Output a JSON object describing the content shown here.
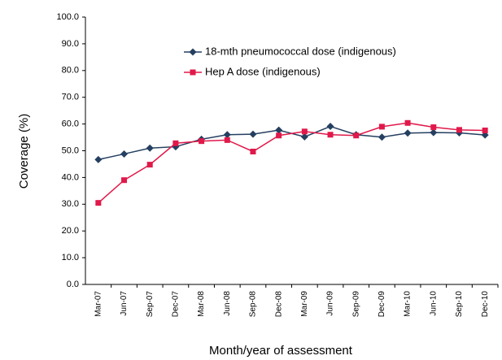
{
  "chart_data": {
    "type": "line",
    "x_label": "Month/year of assessment",
    "y_label": "Coverage (%)",
    "categories": [
      "Mar-07",
      "Jun-07",
      "Sep-07",
      "Dec-07",
      "Mar-08",
      "Jun-08",
      "Sep-08",
      "Dec-08",
      "Mar-09",
      "Jun-09",
      "Sep-09",
      "Dec-09",
      "Mar-10",
      "Jun-10",
      "Sep-10",
      "Dec-10"
    ],
    "series": [
      {
        "name": "18-mth pneumococcal dose (indigenous)",
        "color": "#243f60",
        "marker": "diamond",
        "values": [
          46.7,
          48.8,
          51.0,
          51.5,
          54.3,
          56.0,
          56.2,
          57.7,
          55.2,
          59.1,
          56.0,
          55.1,
          56.6,
          56.8,
          56.7,
          55.9
        ]
      },
      {
        "name": "Hep A dose (indigenous)",
        "color": "#e0194a",
        "marker": "square",
        "values": [
          30.5,
          39.0,
          44.8,
          52.8,
          53.6,
          54.0,
          49.7,
          55.7,
          57.2,
          56.0,
          55.7,
          59.0,
          60.4,
          58.8,
          57.8,
          57.6
        ]
      }
    ],
    "ylim": [
      0,
      100
    ],
    "yticks": [
      {
        "value": 0,
        "label": "0.0"
      },
      {
        "value": 10,
        "label": "10.0"
      },
      {
        "value": 20,
        "label": "20.0"
      },
      {
        "value": 30,
        "label": "30.0"
      },
      {
        "value": 40,
        "label": "40.0"
      },
      {
        "value": 50,
        "label": "50.0"
      },
      {
        "value": 60,
        "label": "60.0"
      },
      {
        "value": 70,
        "label": "70.0"
      },
      {
        "value": 80,
        "label": "80.0"
      },
      {
        "value": 90,
        "label": "90.0"
      },
      {
        "value": 100,
        "label": "100.0"
      }
    ],
    "grid": false
  }
}
